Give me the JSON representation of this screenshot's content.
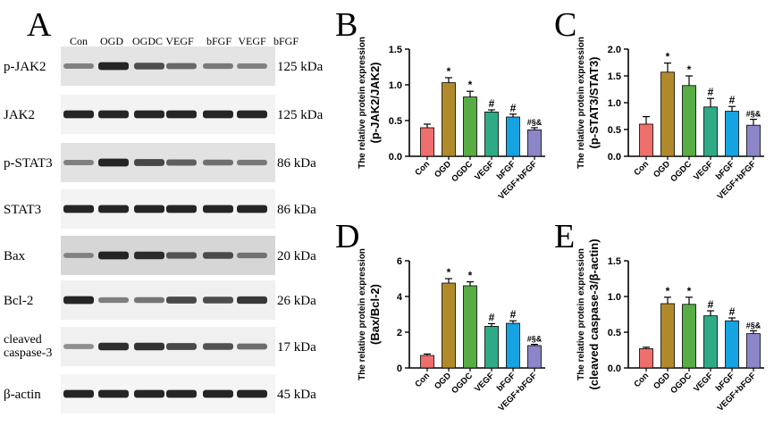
{
  "western_blot": {
    "panel_letter": "A",
    "lanes": [
      "Con",
      "OGD",
      "OGDC",
      "VEGF",
      "bFGF",
      "VEGF",
      "bFGF"
    ],
    "rows": [
      {
        "name": "p-JAK2",
        "kda": "125 kDa",
        "bg": "#e4e4e4",
        "intensity": [
          0.4,
          0.95,
          0.7,
          0.55,
          0.45,
          0.4
        ]
      },
      {
        "name": "JAK2",
        "kda": "125 kDa",
        "bg": "#f3f3f3",
        "intensity": [
          0.95,
          0.95,
          0.95,
          0.95,
          0.95,
          0.95
        ]
      },
      {
        "name": "p-STAT3",
        "kda": "86 kDa",
        "bg": "#e2e2e2",
        "intensity": [
          0.4,
          0.95,
          0.75,
          0.6,
          0.5,
          0.45
        ]
      },
      {
        "name": "STAT3",
        "kda": "86 kDa",
        "bg": "#f3f3f3",
        "intensity": [
          0.95,
          0.95,
          0.95,
          0.95,
          0.95,
          0.95
        ]
      },
      {
        "name": "Bax",
        "kda": "20 kDa",
        "bg": "#d6d6d6",
        "intensity": [
          0.35,
          0.95,
          0.9,
          0.65,
          0.7,
          0.45
        ]
      },
      {
        "name": "Bcl-2",
        "kda": "26 kDa",
        "bg": "#f0f0f0",
        "intensity": [
          0.95,
          0.45,
          0.5,
          0.75,
          0.72,
          0.85
        ]
      },
      {
        "name": "cleaved\ncaspase-3",
        "kda": "17 kDa",
        "bg": "#f0f0f0",
        "intensity": [
          0.35,
          0.9,
          0.88,
          0.75,
          0.7,
          0.55
        ]
      },
      {
        "name": "β-actin",
        "kda": "45 kDa",
        "bg": "#f5f5f5",
        "intensity": [
          0.95,
          0.95,
          0.95,
          0.95,
          0.95,
          0.95
        ]
      }
    ]
  },
  "chart_data": [
    {
      "panel": "B",
      "type": "bar",
      "categories": [
        "Con",
        "OGD",
        "OGDC",
        "VEGF",
        "bFGF",
        "VEGF+bFGF"
      ],
      "values": [
        0.4,
        1.03,
        0.83,
        0.62,
        0.55,
        0.37
      ],
      "errors": [
        0.05,
        0.07,
        0.08,
        0.03,
        0.04,
        0.03
      ],
      "annotations": [
        "",
        "*",
        "*",
        "#",
        "#",
        "#§&"
      ],
      "ylabel": "The relative protein expression",
      "ylabel2": "(p-JAK2/JAK2)",
      "ylim": [
        0,
        1.5
      ],
      "yticks": [
        "0.0",
        "0.5",
        "1.0",
        "1.5"
      ],
      "grid": false
    },
    {
      "panel": "C",
      "type": "bar",
      "categories": [
        "Con",
        "OGD",
        "OGDC",
        "VEGF",
        "bFGF",
        "VEGF+bFGF"
      ],
      "values": [
        0.6,
        1.57,
        1.32,
        0.92,
        0.84,
        0.58
      ],
      "errors": [
        0.14,
        0.17,
        0.18,
        0.16,
        0.09,
        0.11
      ],
      "annotations": [
        "",
        "*",
        "*",
        "#",
        "#",
        "#§&"
      ],
      "ylabel": "The relative protein expression",
      "ylabel2": "(p-STAT3/STAT3)",
      "ylim": [
        0,
        2.0
      ],
      "yticks": [
        "0.0",
        "0.5",
        "1.0",
        "1.5",
        "2.0"
      ],
      "grid": false
    },
    {
      "panel": "D",
      "type": "bar",
      "categories": [
        "Con",
        "OGD",
        "OGDC",
        "VEGF",
        "bFGF",
        "VEGF+bFGF"
      ],
      "values": [
        0.7,
        4.75,
        4.6,
        2.33,
        2.5,
        1.25
      ],
      "errors": [
        0.08,
        0.25,
        0.22,
        0.15,
        0.14,
        0.07
      ],
      "annotations": [
        "",
        "*",
        "*",
        "#",
        "#",
        "#§&"
      ],
      "ylabel": "The relative protein expression",
      "ylabel2": "(Bax/Bcl-2)",
      "ylim": [
        0,
        6
      ],
      "yticks": [
        "0",
        "2",
        "4",
        "6"
      ],
      "grid": false
    },
    {
      "panel": "E",
      "type": "bar",
      "categories": [
        "Con",
        "OGD",
        "OGDC",
        "VEGF",
        "bFGF",
        "VEGF+bFGF"
      ],
      "values": [
        0.27,
        0.9,
        0.89,
        0.73,
        0.66,
        0.48
      ],
      "errors": [
        0.02,
        0.09,
        0.1,
        0.07,
        0.04,
        0.04
      ],
      "annotations": [
        "",
        "*",
        "*",
        "#",
        "#",
        "#§&"
      ],
      "ylabel": "The relative protein expression",
      "ylabel2": "(cleaved caspase-3/β-actin)",
      "ylim": [
        0,
        1.5
      ],
      "yticks": [
        "0.0",
        "0.5",
        "1.0",
        "1.5"
      ],
      "grid": false
    }
  ],
  "colors": {
    "bars": [
      "#ef6f6c",
      "#b08a2a",
      "#58ad45",
      "#2eab86",
      "#15a3e2",
      "#8a86c8"
    ],
    "axis": "#000000",
    "band": "#111111"
  }
}
